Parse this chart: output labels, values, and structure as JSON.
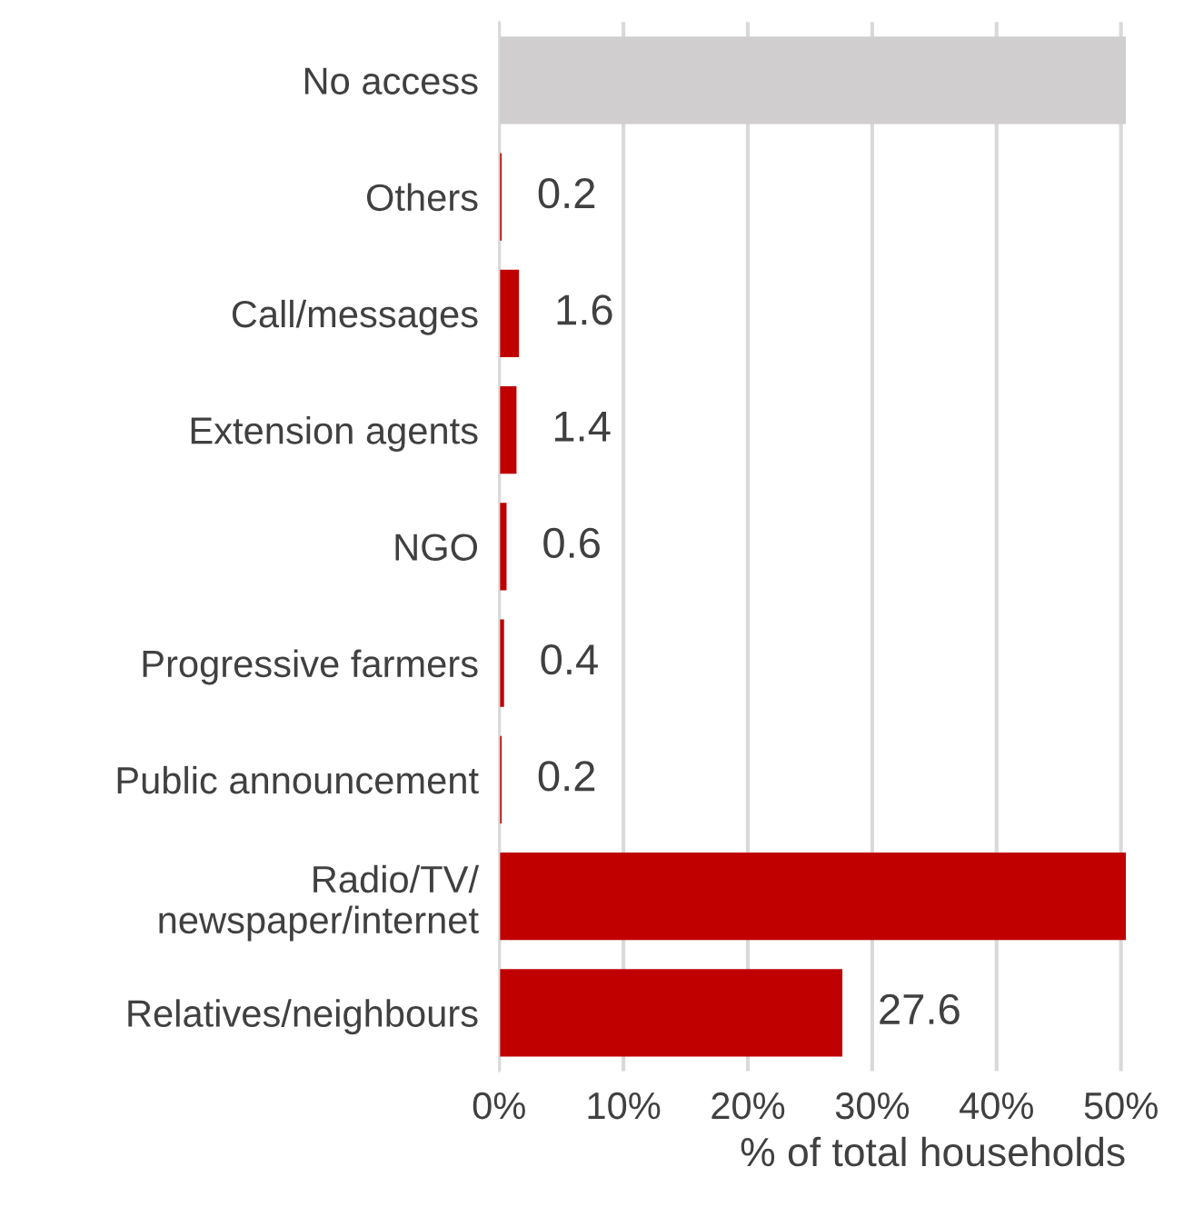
{
  "chart_data": {
    "type": "bar",
    "orientation": "horizontal",
    "xlabel": "% of total households",
    "categories": [
      "No access",
      "Others",
      "Call/messages",
      "Extension agents",
      "NGO",
      "Progressive farmers",
      "Public announcement",
      "Radio/TV/\nnewspaper/internet",
      "Relatives/neighbours"
    ],
    "values": [
      50.4,
      0.2,
      1.6,
      1.4,
      0.6,
      0.4,
      0.2,
      50.4,
      27.6
    ],
    "colors": [
      "#d0cecf",
      "#c00000",
      "#c00000",
      "#c00000",
      "#c00000",
      "#c00000",
      "#c00000",
      "#c00000",
      "#c00000"
    ],
    "value_labels": [
      null,
      "0.2",
      "1.6",
      "1.4",
      "0.6",
      "0.4",
      "0.2",
      null,
      "27.6"
    ],
    "xlim": [
      0,
      50.4
    ],
    "xticks": [
      {
        "value": 0,
        "label": "0%"
      },
      {
        "value": 10,
        "label": "10%"
      },
      {
        "value": 20,
        "label": "20%"
      },
      {
        "value": 30,
        "label": "30%"
      },
      {
        "value": 40,
        "label": "40%"
      },
      {
        "value": 50,
        "label": "50%"
      }
    ],
    "grid": "x",
    "legend": false
  }
}
